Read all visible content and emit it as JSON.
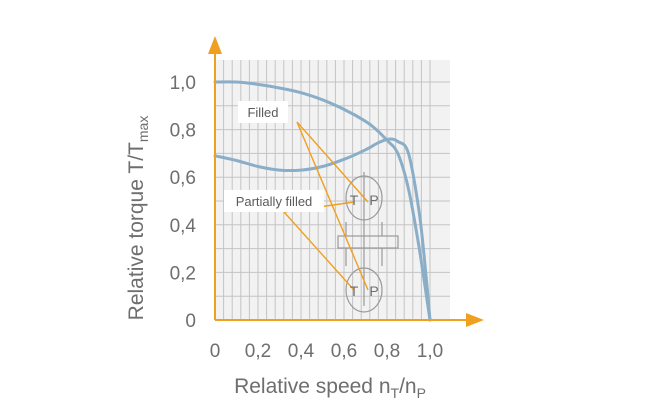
{
  "colors": {
    "axis": "#f0a020",
    "curve": "#8aaec8",
    "grid": "#c4c4c4",
    "plot_bg": "#f2f2f2",
    "leader": "#f0a020",
    "device": "#9a9a9a",
    "text": "#6e6e6e"
  },
  "chart_data": {
    "type": "line",
    "xlabel": {
      "main": "Relative speed n",
      "sub1": "T",
      "mid": "/n",
      "sub2": "P"
    },
    "ylabel": {
      "main": "Relative torque T/T",
      "sub": "max"
    },
    "xlim": [
      0,
      1.0
    ],
    "ylim": [
      0,
      1.0
    ],
    "grid": true,
    "x_ticks": [
      "0",
      "0,2",
      "0,4",
      "0,6",
      "0,8",
      "1,0"
    ],
    "y_ticks": [
      "0",
      "0,2",
      "0,4",
      "0,6",
      "0,8",
      "1,0"
    ],
    "series": [
      {
        "name": "Filled",
        "points": [
          [
            0,
            1.0
          ],
          [
            0.1,
            1.0
          ],
          [
            0.2,
            0.99
          ],
          [
            0.3,
            0.975
          ],
          [
            0.4,
            0.955
          ],
          [
            0.5,
            0.925
          ],
          [
            0.6,
            0.885
          ],
          [
            0.7,
            0.835
          ],
          [
            0.75,
            0.8
          ],
          [
            0.8,
            0.755
          ],
          [
            0.85,
            0.7
          ],
          [
            0.9,
            0.55
          ],
          [
            0.95,
            0.3
          ],
          [
            1.0,
            0.0
          ]
        ]
      },
      {
        "name": "Partially filled",
        "points": [
          [
            0,
            0.69
          ],
          [
            0.1,
            0.67
          ],
          [
            0.2,
            0.645
          ],
          [
            0.3,
            0.63
          ],
          [
            0.4,
            0.63
          ],
          [
            0.5,
            0.645
          ],
          [
            0.6,
            0.675
          ],
          [
            0.7,
            0.715
          ],
          [
            0.76,
            0.745
          ],
          [
            0.81,
            0.76
          ],
          [
            0.85,
            0.75
          ],
          [
            0.9,
            0.7
          ],
          [
            0.95,
            0.45
          ],
          [
            0.98,
            0.2
          ],
          [
            1.0,
            0.0
          ]
        ]
      }
    ],
    "annotations": [
      "Filled",
      "Partially filled"
    ],
    "device_labels": [
      "T",
      "P",
      "T",
      "P"
    ]
  }
}
